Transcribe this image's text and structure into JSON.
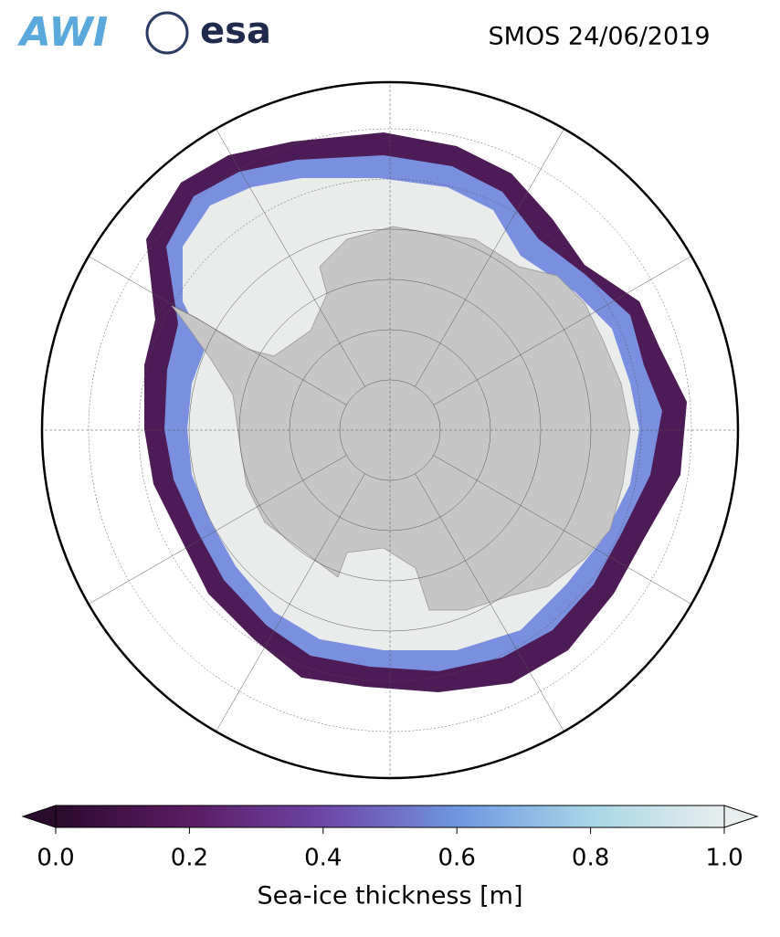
{
  "header": {
    "logos": [
      "AWI",
      "esa"
    ],
    "title": "SMOS 24/06/2019"
  },
  "colorbar": {
    "label": "Sea-ice thickness [m]",
    "lim": [
      0,
      1
    ],
    "ticks": [
      {
        "value": 0,
        "label": "0.0"
      },
      0.2,
      0.4,
      0.6,
      0.8,
      {
        "value": 1,
        "label": "1.0"
      }
    ],
    "colors": [
      "#2b0b2e",
      "#5a1c62",
      "#6e45a8",
      "#6f95e2",
      "#a8d6e6",
      "#e8eeee"
    ]
  }
}
